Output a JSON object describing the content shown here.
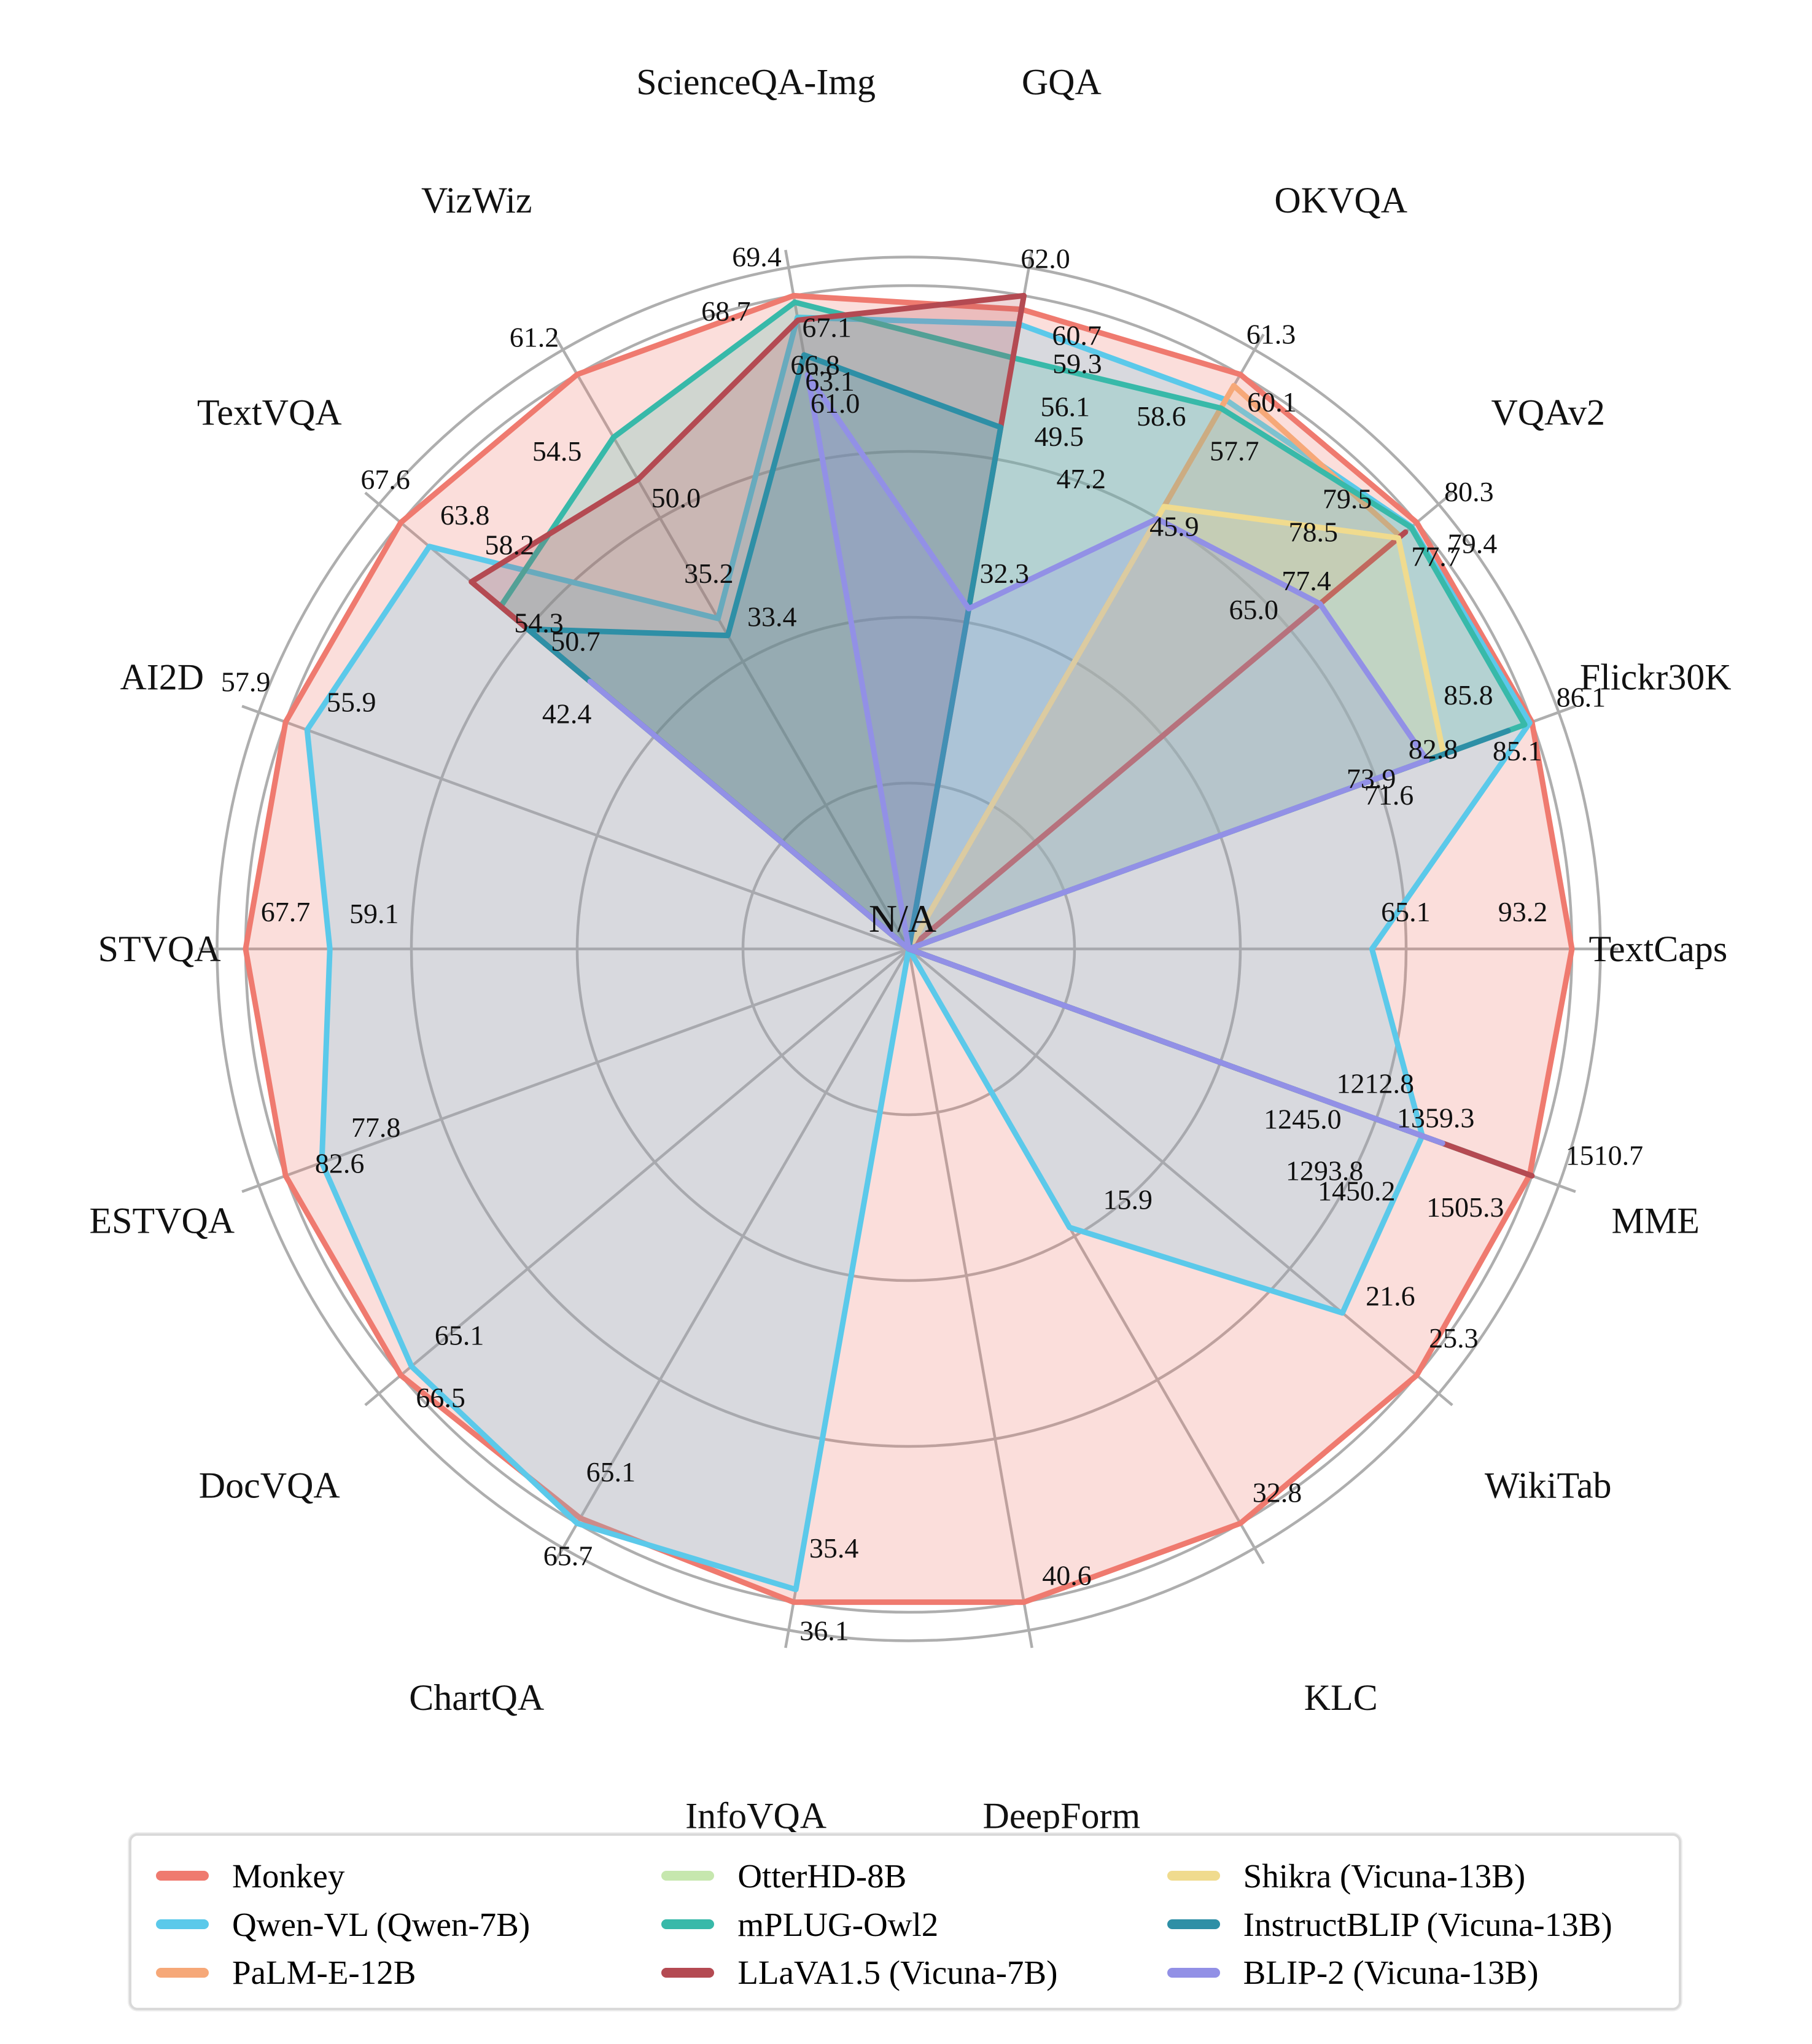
{
  "figure": {
    "center_annotation": "N/A",
    "background": "#ffffff",
    "grid_color": "#aeaeae"
  },
  "chart_data": {
    "type": "radar",
    "title": "",
    "grid": {
      "rings": [
        0.25,
        0.5,
        0.75,
        1.0,
        1.043
      ],
      "spoke_overhang": 1.07,
      "legend_position": "bottom"
    },
    "axes": [
      {
        "label": "ScienceQA-Img",
        "max": 69.4
      },
      {
        "label": "GQA",
        "max": 62.0
      },
      {
        "label": "OKVQA",
        "max": 61.3
      },
      {
        "label": "VQAv2",
        "max": 80.3
      },
      {
        "label": "Flickr30K",
        "max": 86.1
      },
      {
        "label": "TextCaps",
        "max": 93.2
      },
      {
        "label": "MME",
        "max": 1510.7
      },
      {
        "label": "WikiTab",
        "max": 25.3
      },
      {
        "label": "KLC",
        "max": 32.8
      },
      {
        "label": "DeepForm",
        "max": 40.6
      },
      {
        "label": "InfoVQA",
        "max": 36.1
      },
      {
        "label": "ChartQA",
        "max": 65.7
      },
      {
        "label": "DocVQA",
        "max": 66.5
      },
      {
        "label": "ESTVQA",
        "max": 82.6
      },
      {
        "label": "STVQA",
        "max": 67.7
      },
      {
        "label": "AI2D",
        "max": 57.9
      },
      {
        "label": "TextVQA",
        "max": 67.6
      },
      {
        "label": "VizWiz",
        "max": 61.2
      }
    ],
    "series": [
      {
        "name": "Monkey",
        "color": "#EF7A6F",
        "fill_opacity": 0.25,
        "values": [
          69.4,
          60.7,
          61.3,
          80.3,
          86.1,
          93.2,
          1505.3,
          25.3,
          32.8,
          40.6,
          36.1,
          65.1,
          66.5,
          82.6,
          67.7,
          57.9,
          67.6,
          61.2
        ],
        "labels": [
          "69.4",
          "60.7",
          "61.3",
          "80.3",
          "86.1",
          "93.2",
          "1505.3",
          "25.3",
          "32.8",
          "40.6",
          "36.1",
          "65.1",
          "66.5",
          "82.6",
          "67.7",
          "57.9",
          "67.6",
          "61.2"
        ],
        "label_offsets": [
          [
            -60,
            -48
          ],
          [
            90,
            58
          ],
          [
            50,
            -50
          ],
          [
            85,
            -35
          ],
          [
            80,
            -25
          ],
          [
            -80,
            -45
          ],
          [
            -105,
            68
          ],
          [
            60,
            -45
          ],
          [
            60,
            -35
          ],
          [
            70,
            -28
          ],
          [
            50,
            62
          ],
          [
            50,
            -60
          ],
          [
            65,
            52
          ],
          [
            88,
            -5
          ],
          [
            65,
            -45
          ],
          [
            -65,
            -50
          ],
          [
            -25,
            -55
          ],
          [
            -70,
            -45
          ]
        ]
      },
      {
        "name": "Qwen-VL (Qwen-7B)",
        "color": "#5BC9EA",
        "fill_opacity": 0.22,
        "values": [
          67.1,
          59.3,
          58.6,
          79.5,
          85.8,
          65.1,
          1245.0,
          21.6,
          15.9,
          null,
          35.4,
          65.7,
          65.1,
          77.8,
          59.1,
          55.9,
          63.8,
          35.2
        ],
        "labels": [
          "67.1",
          "59.3",
          "58.6",
          "79.5",
          "85.8",
          "65.1",
          "1245.0",
          "21.6",
          "15.9",
          null,
          "35.4",
          "65.7",
          "65.1",
          "77.8",
          "59.1",
          "55.9",
          "63.8",
          "35.2"
        ],
        "label_offsets": [
          [
            48,
            32
          ],
          [
            95,
            80
          ],
          [
            -105,
            42
          ],
          [
            -105,
            -30
          ],
          [
            -100,
            -30
          ],
          [
            55,
            -45
          ],
          [
            -195,
            -12
          ],
          [
            78,
            -12
          ],
          [
            95,
            -30
          ],
          null,
          [
            62,
            -52
          ],
          [
            -15,
            68
          ],
          [
            78,
            -35
          ],
          [
            88,
            -42
          ],
          [
            72,
            -42
          ],
          [
            72,
            -30
          ],
          [
            58,
            -36
          ],
          [
            -15,
            -58
          ]
        ]
      },
      {
        "name": "PaLM-E-12B",
        "color": "#F6A878",
        "fill_opacity": 0.22,
        "values": [
          null,
          null,
          60.1,
          77.7,
          null,
          null,
          null,
          null,
          null,
          null,
          null,
          null,
          null,
          null,
          null,
          null,
          null,
          null
        ],
        "labels": [
          null,
          null,
          "60.1",
          "77.7",
          null,
          null,
          null,
          null,
          null,
          null,
          null,
          null,
          null,
          null,
          null,
          null,
          null,
          null
        ],
        "label_offsets": [
          null,
          null,
          [
            62,
            42
          ],
          [
            58,
            48
          ],
          null,
          null,
          null,
          null,
          null,
          null,
          null,
          null,
          null,
          null,
          null,
          null,
          null,
          null
        ]
      },
      {
        "name": "OtterHD-8B",
        "color": "#C6E7AE",
        "fill_opacity": 0.22,
        "values": [
          null,
          null,
          null,
          null,
          null,
          null,
          1359.3,
          null,
          null,
          null,
          null,
          null,
          null,
          null,
          null,
          null,
          null,
          null
        ],
        "labels": [
          null,
          null,
          null,
          null,
          null,
          null,
          "1359.3",
          null,
          null,
          null,
          null,
          null,
          null,
          null,
          null,
          null,
          null,
          null
        ],
        "label_offsets": [
          null,
          null,
          null,
          null,
          null,
          null,
          [
            -55,
            -42
          ],
          null,
          null,
          null,
          null,
          null,
          null,
          null,
          null,
          null,
          null,
          null
        ]
      },
      {
        "name": "mPLUG-Owl2",
        "color": "#38B9A9",
        "fill_opacity": 0.22,
        "values": [
          68.7,
          56.1,
          57.7,
          79.4,
          85.1,
          null,
          1450.2,
          null,
          null,
          null,
          null,
          null,
          null,
          null,
          null,
          null,
          54.3,
          54.5
        ],
        "labels": [
          "68.7",
          "56.1",
          "57.7",
          "79.4",
          "85.1",
          null,
          "1450.2",
          null,
          null,
          null,
          null,
          null,
          null,
          null,
          null,
          null,
          "54.3",
          "54.5"
        ],
        "label_offsets": [
          [
            -112,
            30
          ],
          [
            85,
            95
          ],
          [
            22,
            85
          ],
          [
            100,
            42
          ],
          [
            -12,
            58
          ],
          null,
          [
            -245,
            55
          ],
          null,
          null,
          null,
          null,
          null,
          null,
          null,
          null,
          null,
          [
            62,
            42
          ],
          [
            -92,
            38
          ]
        ]
      },
      {
        "name": "LLaVA1.5 (Vicuna-7B)",
        "color": "#B44A52",
        "fill_opacity": 0.22,
        "values": [
          66.8,
          62.0,
          null,
          78.5,
          null,
          null,
          1510.7,
          null,
          null,
          null,
          null,
          null,
          null,
          null,
          null,
          null,
          58.2,
          50.0
        ],
        "labels": [
          "66.8",
          "62.0",
          null,
          "78.5",
          null,
          null,
          "1510.7",
          null,
          null,
          null,
          null,
          null,
          null,
          null,
          null,
          null,
          "58.2",
          "50.0"
        ],
        "label_offsets": [
          [
            28,
            88
          ],
          [
            35,
            -45
          ],
          null,
          [
            -150,
            15
          ],
          null,
          null,
          [
            118,
            -18
          ],
          null,
          null,
          null,
          null,
          null,
          null,
          null,
          null,
          null,
          [
            62,
            -45
          ],
          [
            62,
            45
          ]
        ]
      },
      {
        "name": "Shikra (Vicuna-13B)",
        "color": "#F0DB8E",
        "fill_opacity": 0.22,
        "values": [
          null,
          null,
          47.2,
          77.4,
          73.9,
          null,
          null,
          null,
          null,
          null,
          null,
          null,
          null,
          null,
          null,
          null,
          null,
          null
        ],
        "labels": [
          null,
          null,
          "47.2",
          "77.4",
          "73.9",
          null,
          null,
          null,
          null,
          null,
          null,
          null,
          null,
          null,
          null,
          null,
          null,
          null
        ],
        "label_offsets": [
          null,
          null,
          [
            -135,
            -30
          ],
          [
            -150,
            85
          ],
          [
            -118,
            55
          ],
          null,
          null,
          null,
          null,
          null,
          null,
          null,
          null,
          null,
          null,
          null,
          null,
          null
        ]
      },
      {
        "name": "InstructBLIP (Vicuna-13B)",
        "color": "#2E8FA6",
        "fill_opacity": 0.22,
        "values": [
          63.1,
          49.5,
          null,
          null,
          82.8,
          null,
          1212.8,
          null,
          null,
          null,
          null,
          null,
          null,
          null,
          null,
          null,
          50.7,
          33.4
        ],
        "labels": [
          "63.1",
          "49.5",
          null,
          null,
          "82.8",
          null,
          "1212.8",
          null,
          null,
          null,
          null,
          null,
          null,
          null,
          null,
          null,
          "50.7",
          "33.4"
        ],
        "label_offsets": [
          [
            42,
            58
          ],
          [
            95,
            30
          ],
          null,
          null,
          [
            -122,
            45
          ],
          null,
          [
            -55,
            -62
          ],
          null,
          null,
          null,
          null,
          null,
          null,
          null,
          null,
          null,
          [
            78,
            35
          ],
          [
            72,
            -15
          ]
        ]
      },
      {
        "name": "BLIP-2 (Vicuna-13B)",
        "color": "#9290E6",
        "fill_opacity": 0.22,
        "values": [
          61.0,
          32.3,
          45.9,
          65.0,
          71.6,
          null,
          1293.8,
          null,
          null,
          null,
          null,
          null,
          null,
          null,
          null,
          null,
          42.4,
          null
        ],
        "labels": [
          "61.0",
          "32.3",
          "45.9",
          "65.0",
          "71.6",
          null,
          "1293.8",
          null,
          null,
          null,
          null,
          null,
          null,
          null,
          null,
          null,
          "42.4",
          null
        ],
        "label_offsets": [
          [
            45,
            62
          ],
          [
            58,
            -42
          ],
          [
            28,
            28
          ],
          [
            -108,
            25
          ],
          [
            -62,
            72
          ],
          null,
          [
            -192,
            60
          ],
          null,
          null,
          null,
          null,
          null,
          null,
          null,
          null,
          null,
          [
            -38,
            68
          ],
          null
        ]
      }
    ]
  },
  "legend": {
    "columns": [
      [
        "Monkey",
        "Qwen-VL (Qwen-7B)",
        "PaLM-E-12B"
      ],
      [
        "OtterHD-8B",
        "mPLUG-Owl2",
        "LLaVA1.5 (Vicuna-7B)"
      ],
      [
        "Shikra (Vicuna-13B)",
        "InstructBLIP (Vicuna-13B)",
        "BLIP-2 (Vicuna-13B)"
      ]
    ]
  }
}
